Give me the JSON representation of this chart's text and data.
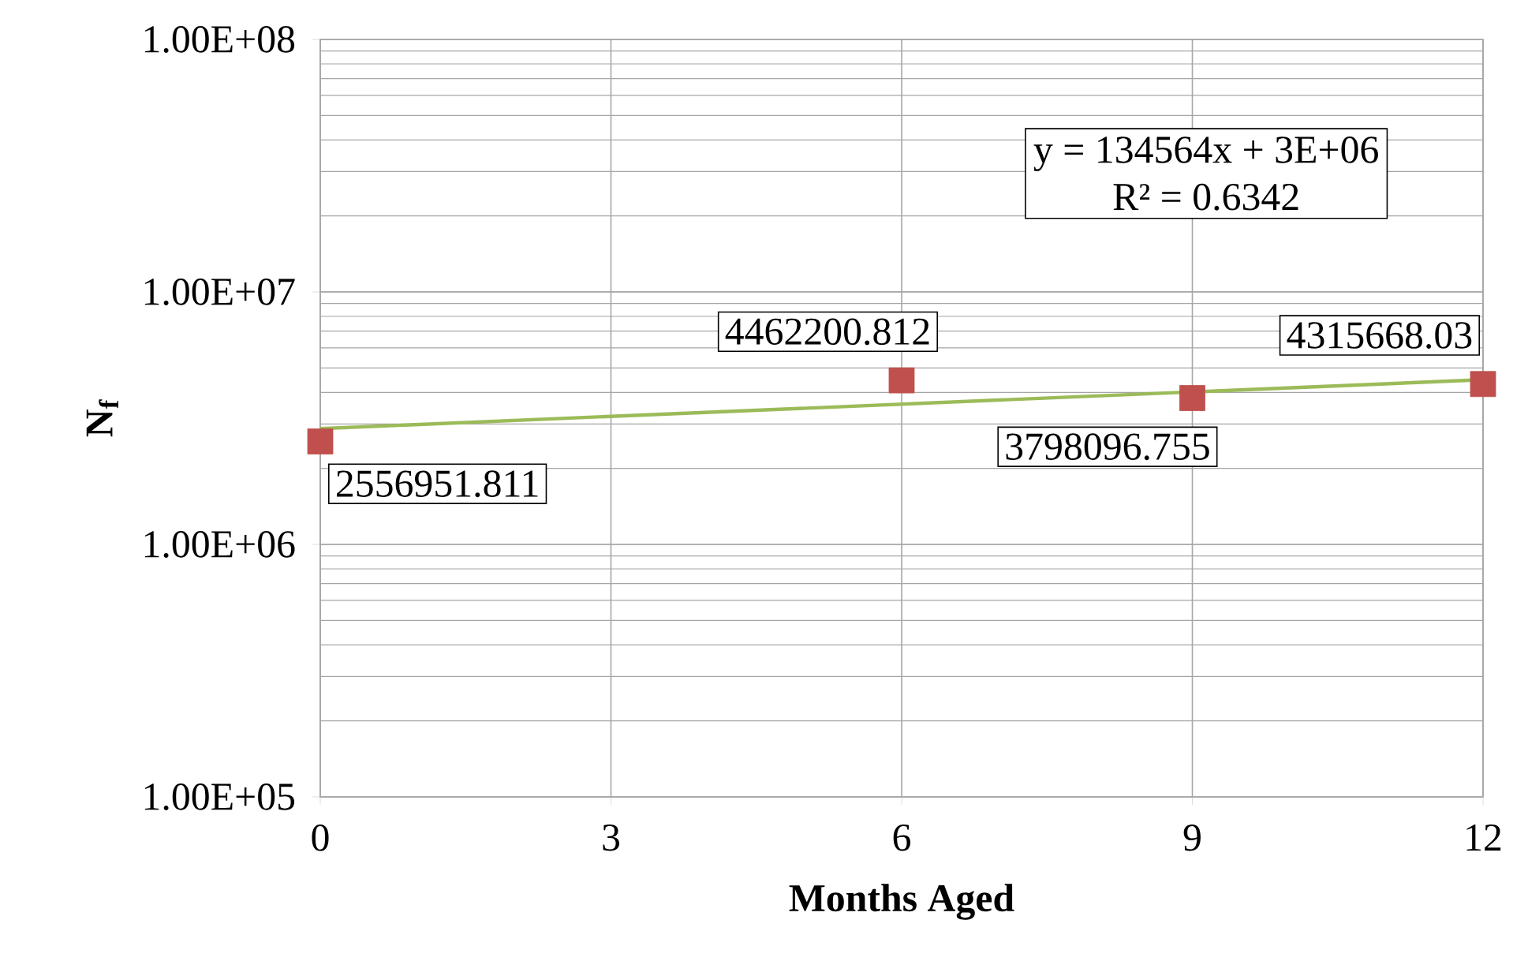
{
  "chart_data": {
    "type": "scatter",
    "xlabel": "Months Aged",
    "ylabel": "N$_{f}$",
    "x": [
      0,
      6,
      9,
      12
    ],
    "series": [
      {
        "color": "#c0504d",
        "marker": "square",
        "values": [
          2556951.811,
          4462200.812,
          3798096.755,
          4315668.03
        ],
        "value_labels": [
          "2556951.811",
          "4462200.812",
          "3798096.755",
          "4315668.03"
        ]
      },
      {
        "type": "line",
        "color": "#9bbb59",
        "marker": "none",
        "x": [
          0,
          12
        ],
        "values": [
          2874922,
          4489690
        ]
      }
    ],
    "log": "y",
    "grid": true,
    "xlim": [
      0,
      12
    ],
    "xticks": [
      0,
      3,
      6,
      9,
      12
    ],
    "ylim": [
      100000,
      100000000
    ],
    "yticks": [
      {
        "value": 100000,
        "label": "1.00E+05"
      },
      {
        "value": 1000000,
        "label": "1.00E+06"
      },
      {
        "value": 10000000,
        "label": "1.00E+07"
      },
      {
        "value": 100000000,
        "label": "1.00E+08"
      }
    ],
    "annotations": [
      "y = 134564x + 3E+06",
      "R² = 0.6342"
    ]
  }
}
